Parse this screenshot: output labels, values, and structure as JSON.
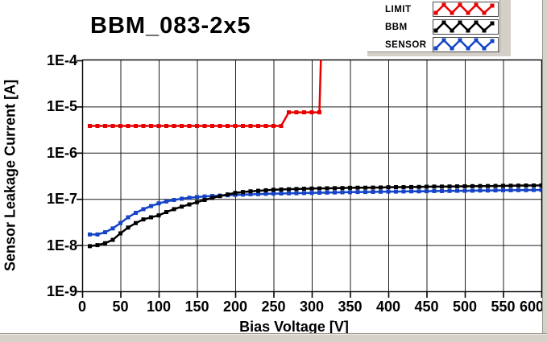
{
  "chart_data": {
    "type": "line",
    "title": "BBM_083-2x5",
    "xlabel": "Bias Voltage [V]",
    "ylabel": "Sensor Leakage Current [A]",
    "x_ticks": [
      0,
      50,
      100,
      150,
      200,
      250,
      300,
      350,
      400,
      450,
      500,
      550,
      600
    ],
    "y_tick_labels": [
      "1E-4",
      "1E-5",
      "1E-6",
      "1E-7",
      "1E-8",
      "1E-9"
    ],
    "y_scale": "log",
    "xlim": [
      0,
      600
    ],
    "ylim": [
      1e-09,
      0.0001
    ],
    "grid": true,
    "legend_position": "top-right",
    "legend": [
      {
        "label": "LIMIT",
        "color": "#e80000"
      },
      {
        "label": "BBM",
        "color": "#000000"
      },
      {
        "label": "SENSOR",
        "color": "#1644c8"
      }
    ],
    "series": [
      {
        "name": "LIMIT",
        "color": "#e80000",
        "points": [
          [
            10,
            3.8e-06
          ],
          [
            20,
            3.8e-06
          ],
          [
            30,
            3.8e-06
          ],
          [
            40,
            3.8e-06
          ],
          [
            50,
            3.8e-06
          ],
          [
            60,
            3.8e-06
          ],
          [
            70,
            3.8e-06
          ],
          [
            80,
            3.8e-06
          ],
          [
            90,
            3.8e-06
          ],
          [
            100,
            3.8e-06
          ],
          [
            110,
            3.8e-06
          ],
          [
            120,
            3.8e-06
          ],
          [
            130,
            3.8e-06
          ],
          [
            140,
            3.8e-06
          ],
          [
            150,
            3.8e-06
          ],
          [
            160,
            3.8e-06
          ],
          [
            170,
            3.8e-06
          ],
          [
            180,
            3.8e-06
          ],
          [
            190,
            3.8e-06
          ],
          [
            200,
            3.8e-06
          ],
          [
            210,
            3.8e-06
          ],
          [
            220,
            3.8e-06
          ],
          [
            230,
            3.8e-06
          ],
          [
            240,
            3.8e-06
          ],
          [
            250,
            3.8e-06
          ],
          [
            260,
            3.8e-06
          ],
          [
            270,
            7.5e-06
          ],
          [
            280,
            7.5e-06
          ],
          [
            290,
            7.5e-06
          ],
          [
            300,
            7.5e-06
          ],
          [
            310,
            7.5e-06
          ],
          [
            312,
            0.00012
          ]
        ]
      },
      {
        "name": "BBM",
        "color": "#000000",
        "points": [
          [
            10,
            9.5e-09
          ],
          [
            20,
            1e-08
          ],
          [
            30,
            1.1e-08
          ],
          [
            40,
            1.3e-08
          ],
          [
            50,
            1.8e-08
          ],
          [
            60,
            2.4e-08
          ],
          [
            70,
            3e-08
          ],
          [
            80,
            3.6e-08
          ],
          [
            90,
            4e-08
          ],
          [
            100,
            4.4e-08
          ],
          [
            110,
            5.2e-08
          ],
          [
            120,
            6e-08
          ],
          [
            130,
            6.8e-08
          ],
          [
            140,
            7.6e-08
          ],
          [
            150,
            8.5e-08
          ],
          [
            160,
            9.5e-08
          ],
          [
            170,
            1.05e-07
          ],
          [
            180,
            1.15e-07
          ],
          [
            190,
            1.25e-07
          ],
          [
            200,
            1.35e-07
          ],
          [
            210,
            1.41e-07
          ],
          [
            220,
            1.46e-07
          ],
          [
            230,
            1.5e-07
          ],
          [
            240,
            1.54e-07
          ],
          [
            250,
            1.58e-07
          ],
          [
            260,
            1.6e-07
          ],
          [
            270,
            1.62e-07
          ],
          [
            280,
            1.64e-07
          ],
          [
            290,
            1.66e-07
          ],
          [
            300,
            1.68e-07
          ],
          [
            310,
            1.69e-07
          ],
          [
            320,
            1.7e-07
          ],
          [
            330,
            1.71e-07
          ],
          [
            340,
            1.72e-07
          ],
          [
            350,
            1.74e-07
          ],
          [
            360,
            1.75e-07
          ],
          [
            370,
            1.75e-07
          ],
          [
            380,
            1.76e-07
          ],
          [
            390,
            1.77e-07
          ],
          [
            400,
            1.79e-07
          ],
          [
            410,
            1.8e-07
          ],
          [
            420,
            1.8e-07
          ],
          [
            430,
            1.81e-07
          ],
          [
            440,
            1.82e-07
          ],
          [
            450,
            1.84e-07
          ],
          [
            460,
            1.85e-07
          ],
          [
            470,
            1.85e-07
          ],
          [
            480,
            1.86e-07
          ],
          [
            490,
            1.87e-07
          ],
          [
            500,
            1.88e-07
          ],
          [
            510,
            1.89e-07
          ],
          [
            520,
            1.9e-07
          ],
          [
            530,
            1.9e-07
          ],
          [
            540,
            1.91e-07
          ],
          [
            550,
            1.92e-07
          ],
          [
            560,
            1.93e-07
          ],
          [
            570,
            1.94e-07
          ],
          [
            580,
            1.95e-07
          ],
          [
            590,
            1.95e-07
          ],
          [
            600,
            1.96e-07
          ]
        ]
      },
      {
        "name": "SENSOR",
        "color": "#1644c8",
        "points": [
          [
            10,
            1.7e-08
          ],
          [
            20,
            1.7e-08
          ],
          [
            30,
            1.9e-08
          ],
          [
            40,
            2.3e-08
          ],
          [
            50,
            3e-08
          ],
          [
            60,
            4e-08
          ],
          [
            70,
            5e-08
          ],
          [
            80,
            6e-08
          ],
          [
            90,
            7e-08
          ],
          [
            100,
            8e-08
          ],
          [
            110,
            8.8e-08
          ],
          [
            120,
            9.5e-08
          ],
          [
            130,
            1.01e-07
          ],
          [
            140,
            1.06e-07
          ],
          [
            150,
            1.1e-07
          ],
          [
            160,
            1.13e-07
          ],
          [
            170,
            1.16e-07
          ],
          [
            180,
            1.18e-07
          ],
          [
            190,
            1.2e-07
          ],
          [
            200,
            1.22e-07
          ],
          [
            210,
            1.24e-07
          ],
          [
            220,
            1.26e-07
          ],
          [
            230,
            1.27e-07
          ],
          [
            240,
            1.29e-07
          ],
          [
            250,
            1.3e-07
          ],
          [
            260,
            1.31e-07
          ],
          [
            270,
            1.32e-07
          ],
          [
            280,
            1.33e-07
          ],
          [
            290,
            1.34e-07
          ],
          [
            300,
            1.35e-07
          ],
          [
            310,
            1.36e-07
          ],
          [
            320,
            1.37e-07
          ],
          [
            330,
            1.38e-07
          ],
          [
            340,
            1.39e-07
          ],
          [
            350,
            1.4e-07
          ],
          [
            360,
            1.41e-07
          ],
          [
            370,
            1.41e-07
          ],
          [
            380,
            1.42e-07
          ],
          [
            390,
            1.43e-07
          ],
          [
            400,
            1.44e-07
          ],
          [
            410,
            1.44e-07
          ],
          [
            420,
            1.45e-07
          ],
          [
            430,
            1.46e-07
          ],
          [
            440,
            1.46e-07
          ],
          [
            450,
            1.47e-07
          ],
          [
            460,
            1.48e-07
          ],
          [
            470,
            1.48e-07
          ],
          [
            480,
            1.49e-07
          ],
          [
            490,
            1.5e-07
          ],
          [
            500,
            1.5e-07
          ],
          [
            510,
            1.51e-07
          ],
          [
            520,
            1.52e-07
          ],
          [
            530,
            1.52e-07
          ],
          [
            540,
            1.53e-07
          ],
          [
            550,
            1.54e-07
          ],
          [
            560,
            1.54e-07
          ],
          [
            570,
            1.55e-07
          ],
          [
            580,
            1.55e-07
          ],
          [
            590,
            1.56e-07
          ],
          [
            600,
            1.56e-07
          ]
        ]
      }
    ]
  }
}
